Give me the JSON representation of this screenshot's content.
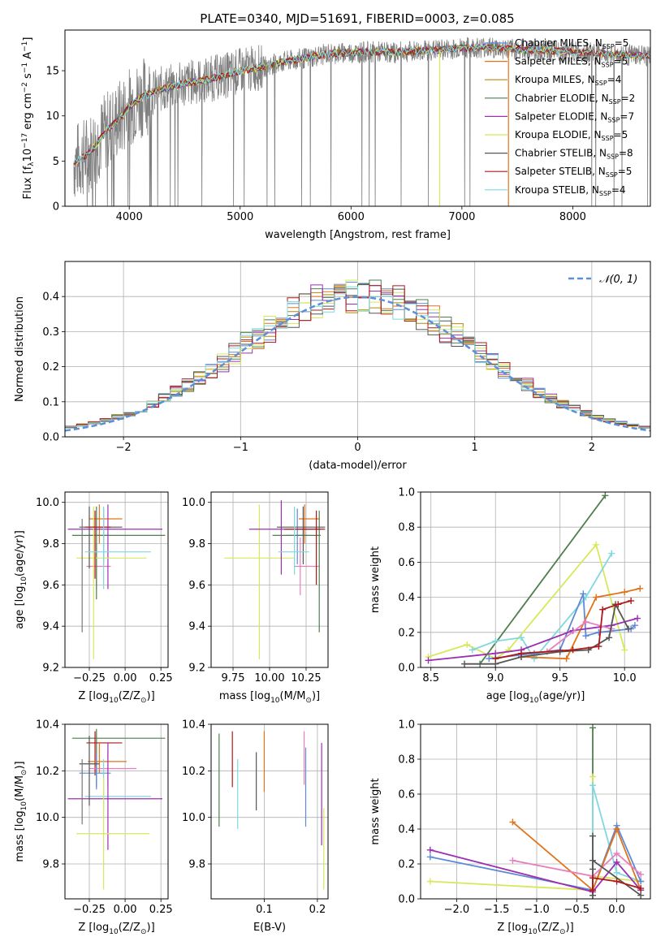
{
  "figure": {
    "title": "PLATE=0340, MJD=51691, FIBERID=0003, z=0.085"
  },
  "chart_data": [
    {
      "id": "spectrum",
      "type": "line",
      "xlabel": "wavelength [Angstrom, rest frame]",
      "ylabel_parts": [
        "Flux [f",
        "λ",
        "10",
        "−17",
        " erg cm",
        "−2",
        " s",
        "−1",
        " A",
        "−1",
        "]"
      ],
      "xlim": [
        3420,
        8700
      ],
      "ylim": [
        0,
        19.5
      ],
      "xticks": [
        4000,
        5000,
        6000,
        7000,
        8000
      ],
      "yticks": [
        0,
        5,
        10,
        15
      ],
      "grid": false,
      "legend_position": "top-right",
      "legend": [
        {
          "pre": "Chabrier MILES, N",
          "sub": "SSP",
          "post": "=5",
          "color": "#5e8ad6"
        },
        {
          "pre": "Salpeter MILES, N",
          "sub": "SSP",
          "post": "=5",
          "color": "#e0731c"
        },
        {
          "pre": "Kroupa MILES, N",
          "sub": "SSP",
          "post": "=4",
          "color": "#b8860b"
        },
        {
          "pre": "Chabrier ELODIE, N",
          "sub": "SSP",
          "post": "=2",
          "color": "#4e7f4e"
        },
        {
          "pre": "Salpeter ELODIE, N",
          "sub": "SSP",
          "post": "=7",
          "color": "#9b30b0"
        },
        {
          "pre": "Kroupa ELODIE, N",
          "sub": "SSP",
          "post": "=5",
          "color": "#d8e85a"
        },
        {
          "pre": "Chabrier STELIB, N",
          "sub": "SSP",
          "post": "=8",
          "color": "#555555"
        },
        {
          "pre": "Salpeter STELIB, N",
          "sub": "SSP",
          "post": "=5",
          "color": "#b01818"
        },
        {
          "pre": "Kroupa STELIB, N",
          "sub": "SSP",
          "post": "=4",
          "color": "#7fd8e0"
        }
      ],
      "data_color": "#808080",
      "continuum": {
        "x": [
          3500,
          3600,
          3700,
          3800,
          3900,
          4000,
          4100,
          4300,
          4500,
          4700,
          4900,
          5000,
          5200,
          5400,
          5600,
          5800,
          6000,
          6200,
          6400,
          6600,
          6800,
          7000,
          7200,
          7400,
          7600,
          7800,
          8000,
          8200,
          8400,
          8700
        ],
        "y": [
          4.8,
          5.5,
          6.8,
          8.5,
          9.5,
          11.0,
          12.0,
          13.0,
          13.6,
          14.0,
          14.6,
          15.0,
          15.4,
          16.0,
          16.4,
          16.9,
          17.0,
          17.1,
          17.0,
          17.2,
          17.3,
          17.5,
          17.6,
          17.4,
          17.3,
          17.2,
          17.1,
          17.0,
          16.8,
          16.6
        ]
      },
      "model_drops": [
        {
          "color": "#d8e85a",
          "x": 6800
        },
        {
          "color": "#e0731c",
          "x": 7420
        }
      ]
    },
    {
      "id": "residuals",
      "type": "bar",
      "xlabel": "(data-model)/error",
      "ylabel": "Normed distribution",
      "xlim": [
        -2.5,
        2.5
      ],
      "ylim": [
        0,
        0.5
      ],
      "xticks": [
        -2,
        -1,
        0,
        1,
        2
      ],
      "yticks": [
        0.0,
        0.1,
        0.2,
        0.3,
        0.4
      ],
      "grid": true,
      "bin_width": 0.1,
      "legend": [
        {
          "label": "𝒩(0, 1)",
          "color": "#5b8fd6"
        }
      ],
      "legend_position": "top-right",
      "normal": {
        "mean": 0,
        "sigma": 1,
        "color": "#5b8fd6"
      }
    },
    {
      "id": "z-age",
      "type": "scatter",
      "xlabel_parts": [
        "Z [log",
        "10",
        "(Z/Z",
        "⊙",
        ")]"
      ],
      "ylabel_parts": [
        "age  [log",
        "10",
        "(age/yr)]"
      ],
      "xlim": [
        -0.42,
        0.3
      ],
      "ylim": [
        9.2,
        10.05
      ],
      "xticks": [
        -0.25,
        0.0,
        0.25
      ],
      "xticklabels": [
        "−0.25",
        "0.00",
        "0.25"
      ],
      "yticks": [
        9.2,
        9.4,
        9.6,
        9.8,
        10.0
      ],
      "grid": true,
      "points": [
        {
          "color": "#5e8ad6",
          "x": -0.15,
          "xlo": -0.24,
          "xhi": -0.12,
          "y": 9.84,
          "ylo": 9.7,
          "yhi": 9.97
        },
        {
          "color": "#e0731c",
          "x": -0.18,
          "xlo": -0.25,
          "xhi": -0.02,
          "y": 9.92,
          "ylo": 9.8,
          "yhi": 9.99
        },
        {
          "color": "#e77fbf",
          "x": -0.2,
          "xlo": -0.27,
          "xhi": -0.1,
          "y": 9.69,
          "ylo": 9.58,
          "yhi": 9.8
        },
        {
          "color": "#4e7f4e",
          "x": -0.2,
          "xlo": -0.37,
          "xhi": 0.28,
          "y": 9.84,
          "ylo": 9.53,
          "yhi": 9.98
        },
        {
          "color": "#9b30b0",
          "x": -0.12,
          "xlo": -0.4,
          "xhi": 0.26,
          "y": 9.87,
          "ylo": 9.58,
          "yhi": 9.99
        },
        {
          "color": "#d8e85a",
          "x": -0.22,
          "xlo": -0.34,
          "xhi": 0.15,
          "y": 9.73,
          "ylo": 9.24,
          "yhi": 9.98
        },
        {
          "color": "#555555",
          "x": -0.25,
          "xlo": -0.32,
          "xhi": -0.02,
          "y": 9.88,
          "ylo": 9.68,
          "yhi": 9.98
        },
        {
          "color": "#b01818",
          "x": -0.21,
          "xlo": -0.28,
          "xhi": -0.1,
          "y": 9.88,
          "ylo": 9.63,
          "yhi": 9.96
        },
        {
          "color": "#7fd8e0",
          "x": -0.15,
          "xlo": -0.28,
          "xhi": 0.18,
          "y": 9.76,
          "ylo": 9.58,
          "yhi": 9.98
        },
        {
          "color": "#777777",
          "x": -0.3,
          "xlo": -0.3,
          "xhi": -0.3,
          "y": 9.6,
          "ylo": 9.37,
          "yhi": 9.92
        }
      ]
    },
    {
      "id": "mass-age",
      "type": "scatter",
      "xlabel_parts": [
        "mass [log",
        "10",
        "(M/M",
        "⊙",
        ")]"
      ],
      "ylabel_parts": [],
      "xlim": [
        9.6,
        10.4
      ],
      "ylim": [
        9.2,
        10.05
      ],
      "xticks": [
        9.75,
        10.0,
        10.25
      ],
      "xticklabels": [
        "9.75",
        "10.00",
        "10.25"
      ],
      "yticks": [
        9.2,
        9.4,
        9.6,
        9.8,
        10.0
      ],
      "grid": true,
      "points": [
        {
          "color": "#d8e85a",
          "x": 9.93,
          "xlo": 9.69,
          "xhi": 10.17,
          "y": 9.73,
          "ylo": 9.24,
          "yhi": 9.99
        },
        {
          "color": "#9b30b0",
          "x": 10.08,
          "xlo": 9.86,
          "xhi": 10.35,
          "y": 9.87,
          "ylo": 9.65,
          "yhi": 10.01
        },
        {
          "color": "#5e8ad6",
          "x": 10.19,
          "xlo": 10.11,
          "xhi": 10.26,
          "y": 9.84,
          "ylo": 9.7,
          "yhi": 9.97
        },
        {
          "color": "#e0731c",
          "x": 10.24,
          "xlo": 10.2,
          "xhi": 10.34,
          "y": 9.92,
          "ylo": 9.8,
          "yhi": 9.99
        },
        {
          "color": "#e77fbf",
          "x": 10.21,
          "xlo": 10.17,
          "xhi": 10.34,
          "y": 9.69,
          "ylo": 9.55,
          "yhi": 9.83
        },
        {
          "color": "#4e7f4e",
          "x": 10.34,
          "xlo": 10.02,
          "xhi": 10.35,
          "y": 9.84,
          "ylo": 9.37,
          "yhi": 9.96
        },
        {
          "color": "#555555",
          "x": 10.23,
          "xlo": 10.05,
          "xhi": 10.38,
          "y": 9.88,
          "ylo": 9.7,
          "yhi": 9.98
        },
        {
          "color": "#b01818",
          "x": 10.32,
          "xlo": 10.1,
          "xhi": 10.38,
          "y": 9.87,
          "ylo": 9.6,
          "yhi": 9.96
        },
        {
          "color": "#7fd8e0",
          "x": 10.17,
          "xlo": 10.06,
          "xhi": 10.27,
          "y": 9.76,
          "ylo": 9.65,
          "yhi": 9.98
        }
      ]
    },
    {
      "id": "age-weight",
      "type": "line",
      "xlabel_parts": [
        "age  [log",
        "10",
        "(age/yr)]"
      ],
      "ylabel": "mass weight",
      "xlim": [
        8.42,
        10.2
      ],
      "ylim": [
        0,
        1.0
      ],
      "xticks": [
        8.5,
        9.0,
        9.5,
        10.0
      ],
      "xticklabels": [
        "8.5",
        "9.0",
        "9.5",
        "10.0"
      ],
      "yticks": [
        0.0,
        0.2,
        0.4,
        0.6,
        0.8,
        1.0
      ],
      "grid": true,
      "series": [
        {
          "color": "#4e7f4e",
          "x": [
            8.88,
            9.85
          ],
          "y": [
            0.02,
            0.98
          ]
        },
        {
          "color": "#d8e85a",
          "x": [
            8.48,
            8.78,
            9.0,
            9.1,
            9.78,
            10.0
          ],
          "y": [
            0.06,
            0.13,
            0.05,
            0.1,
            0.7,
            0.1
          ]
        },
        {
          "color": "#7fd8e0",
          "x": [
            8.82,
            9.0,
            9.2,
            9.3,
            9.7,
            9.9
          ],
          "y": [
            0.1,
            0.15,
            0.17,
            0.05,
            0.4,
            0.65
          ]
        },
        {
          "color": "#5e8ad6",
          "x": [
            8.95,
            9.3,
            9.5,
            9.68,
            9.7,
            9.8,
            10.05,
            10.08
          ],
          "y": [
            0.05,
            0.08,
            0.1,
            0.42,
            0.18,
            0.2,
            0.22,
            0.24
          ]
        },
        {
          "color": "#e0731c",
          "x": [
            9.2,
            9.55,
            9.78,
            10.0,
            10.12
          ],
          "y": [
            0.06,
            0.05,
            0.4,
            0.43,
            0.45
          ]
        },
        {
          "color": "#9b30b0",
          "x": [
            8.48,
            9.0,
            9.2,
            9.6,
            9.9,
            10.1
          ],
          "y": [
            0.04,
            0.08,
            0.1,
            0.21,
            0.24,
            0.28
          ]
        },
        {
          "color": "#e77fbf",
          "x": [
            9.4,
            9.7,
            9.9
          ],
          "y": [
            0.09,
            0.26,
            0.22
          ]
        },
        {
          "color": "#555555",
          "x": [
            8.76,
            9.0,
            9.2,
            9.5,
            9.72,
            9.88,
            9.93,
            10.03
          ],
          "y": [
            0.02,
            0.02,
            0.06,
            0.09,
            0.1,
            0.17,
            0.36,
            0.22
          ]
        },
        {
          "color": "#b01818",
          "x": [
            9.0,
            9.2,
            9.6,
            9.8,
            9.83,
            9.95,
            10.05
          ],
          "y": [
            0.05,
            0.08,
            0.1,
            0.12,
            0.33,
            0.36,
            0.38
          ]
        }
      ]
    },
    {
      "id": "z-mass",
      "type": "scatter",
      "xlabel_parts": [
        "Z [log",
        "10",
        "(Z/Z",
        "⊙",
        ")]"
      ],
      "ylabel_parts": [
        "mass [log",
        "10",
        "(M/M",
        "⊙",
        ")]"
      ],
      "xlim": [
        -0.42,
        0.3
      ],
      "ylim": [
        9.65,
        10.4
      ],
      "xticks": [
        -0.25,
        0.0,
        0.25
      ],
      "xticklabels": [
        "−0.25",
        "0.00",
        "0.25"
      ],
      "yticks": [
        9.8,
        10.0,
        10.2,
        10.4
      ],
      "grid": true,
      "points": [
        {
          "color": "#4e7f4e",
          "x": -0.2,
          "xlo": -0.37,
          "xhi": 0.28,
          "y": 10.34,
          "ylo": 10.13,
          "yhi": 10.38
        },
        {
          "color": "#b01818",
          "x": -0.21,
          "xlo": -0.27,
          "xhi": -0.02,
          "y": 10.32,
          "ylo": 10.18,
          "yhi": 10.37
        },
        {
          "color": "#e0731c",
          "x": -0.18,
          "xlo": -0.26,
          "xhi": 0.01,
          "y": 10.24,
          "ylo": 10.19,
          "yhi": 10.32
        },
        {
          "color": "#e77fbf",
          "x": -0.12,
          "xlo": -0.25,
          "xhi": 0.08,
          "y": 10.21,
          "ylo": 10.13,
          "yhi": 10.29
        },
        {
          "color": "#5e8ad6",
          "x": -0.2,
          "xlo": -0.32,
          "xhi": -0.1,
          "y": 10.19,
          "ylo": 10.12,
          "yhi": 10.27
        },
        {
          "color": "#7fd8e0",
          "x": -0.15,
          "xlo": -0.28,
          "xhi": 0.18,
          "y": 10.09,
          "ylo": 10.03,
          "yhi": 10.25
        },
        {
          "color": "#9b30b0",
          "x": -0.12,
          "xlo": -0.4,
          "xhi": 0.26,
          "y": 10.08,
          "ylo": 9.86,
          "yhi": 10.32
        },
        {
          "color": "#555555",
          "x": -0.25,
          "xlo": -0.32,
          "xhi": -0.18,
          "y": 10.23,
          "ylo": 10.05,
          "yhi": 10.35
        },
        {
          "color": "#d8e85a",
          "x": -0.15,
          "xlo": -0.34,
          "xhi": 0.17,
          "y": 9.93,
          "ylo": 9.69,
          "yhi": 10.17
        },
        {
          "color": "#777777",
          "x": -0.3,
          "xlo": -0.3,
          "xhi": -0.3,
          "y": 10.1,
          "ylo": 9.97,
          "yhi": 10.25
        }
      ]
    },
    {
      "id": "ebv-mass",
      "type": "scatter",
      "xlabel": "E(B-V)",
      "ylabel_parts": [],
      "xlim": [
        0.0,
        0.22
      ],
      "ylim": [
        9.65,
        10.4
      ],
      "xticks": [
        0.1,
        0.2
      ],
      "xticklabels": [
        "0.1",
        "0.2"
      ],
      "yticks": [
        9.8,
        10.0,
        10.2,
        10.4
      ],
      "grid": true,
      "points": [
        {
          "color": "#4e7f4e",
          "x": 0.015,
          "xlo": 0.015,
          "xhi": 0.015,
          "y": 10.16,
          "ylo": 9.96,
          "yhi": 10.36
        },
        {
          "color": "#b01818",
          "x": 0.04,
          "xlo": 0.04,
          "xhi": 0.04,
          "y": 10.25,
          "ylo": 10.13,
          "yhi": 10.37
        },
        {
          "color": "#7fd8e0",
          "x": 0.05,
          "xlo": 0.05,
          "xhi": 0.05,
          "y": 10.1,
          "ylo": 9.95,
          "yhi": 10.25
        },
        {
          "color": "#555555",
          "x": 0.085,
          "xlo": 0.085,
          "xhi": 0.085,
          "y": 10.15,
          "ylo": 10.03,
          "yhi": 10.28
        },
        {
          "color": "#e0731c",
          "x": 0.1,
          "xlo": 0.1,
          "xhi": 0.1,
          "y": 10.23,
          "ylo": 10.11,
          "yhi": 10.37
        },
        {
          "color": "#e77fbf",
          "x": 0.175,
          "xlo": 0.175,
          "xhi": 0.175,
          "y": 10.25,
          "ylo": 10.14,
          "yhi": 10.37
        },
        {
          "color": "#5e8ad6",
          "x": 0.178,
          "xlo": 0.178,
          "xhi": 0.178,
          "y": 10.13,
          "ylo": 9.96,
          "yhi": 10.3
        },
        {
          "color": "#9b30b0",
          "x": 0.208,
          "xlo": 0.208,
          "xhi": 0.208,
          "y": 10.08,
          "ylo": 9.88,
          "yhi": 10.32
        },
        {
          "color": "#d8e85a",
          "x": 0.212,
          "xlo": 0.212,
          "xhi": 0.212,
          "y": 9.86,
          "ylo": 9.69,
          "yhi": 10.04
        }
      ]
    },
    {
      "id": "z-weight",
      "type": "line",
      "xlabel_parts": [
        "Z [log",
        "10",
        "(Z/Z",
        "⊙",
        ")]"
      ],
      "ylabel": "mass weight",
      "xlim": [
        -2.45,
        0.42
      ],
      "ylim": [
        0,
        1.0
      ],
      "xticks": [
        -2.0,
        -1.5,
        -1.0,
        -0.5,
        0.0
      ],
      "xticklabels": [
        "−2.0",
        "−1.5",
        "−1.0",
        "−0.5",
        "0.0"
      ],
      "yticks": [
        0.0,
        0.2,
        0.4,
        0.6,
        0.8,
        1.0
      ],
      "grid": true,
      "series": [
        {
          "color": "#4e7f4e",
          "x": [
            -0.3,
            -0.3,
            -0.3
          ],
          "y": [
            0.02,
            0.98,
            0.02
          ]
        },
        {
          "color": "#d8e85a",
          "x": [
            -2.33,
            -0.3,
            -0.3,
            -0.3,
            0.3
          ],
          "y": [
            0.1,
            0.05,
            0.7,
            0.13,
            0.1
          ]
        },
        {
          "color": "#7fd8e0",
          "x": [
            -0.3,
            -0.3,
            0.0,
            0.3
          ],
          "y": [
            0.05,
            0.65,
            0.15,
            0.1
          ]
        },
        {
          "color": "#5e8ad6",
          "x": [
            -2.33,
            -0.3,
            0.0,
            0.3
          ],
          "y": [
            0.24,
            0.05,
            0.42,
            0.1
          ]
        },
        {
          "color": "#e0731c",
          "x": [
            -1.3,
            -0.3,
            0.0,
            0.3
          ],
          "y": [
            0.44,
            0.05,
            0.4,
            0.05
          ]
        },
        {
          "color": "#9b30b0",
          "x": [
            -2.33,
            -0.3,
            0.0,
            0.3
          ],
          "y": [
            0.28,
            0.04,
            0.21,
            0.05
          ]
        },
        {
          "color": "#e77fbf",
          "x": [
            -1.3,
            -0.3,
            0.0,
            0.3
          ],
          "y": [
            0.22,
            0.13,
            0.26,
            0.14
          ]
        },
        {
          "color": "#555555",
          "x": [
            -0.3,
            -0.3,
            -0.3,
            -0.3,
            0.3
          ],
          "y": [
            0.02,
            0.17,
            0.36,
            0.22,
            0.02
          ]
        },
        {
          "color": "#b01818",
          "x": [
            -0.3,
            -0.3,
            0.0,
            0.3
          ],
          "y": [
            0.05,
            0.12,
            0.1,
            0.06
          ]
        }
      ]
    }
  ]
}
